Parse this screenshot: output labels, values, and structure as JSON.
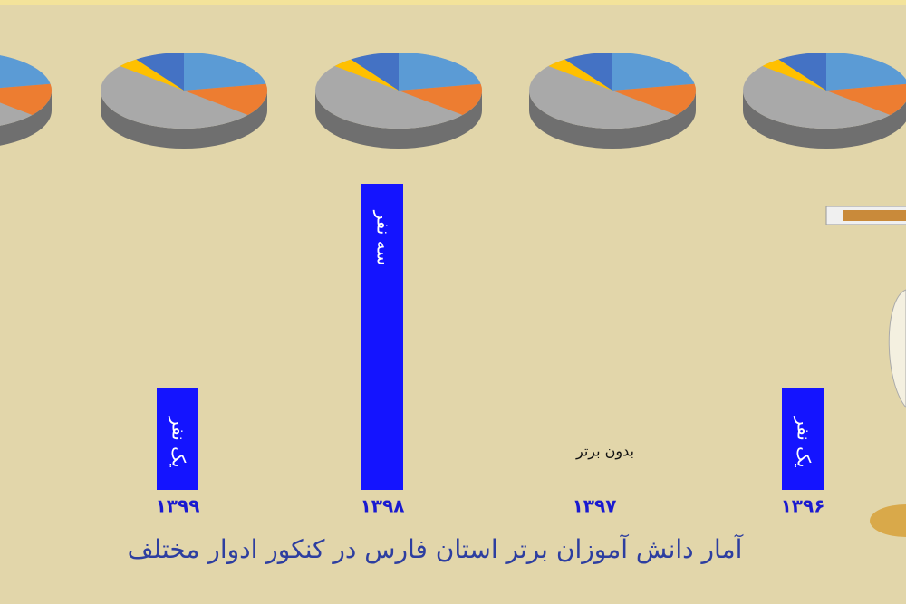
{
  "chart_data": {
    "type": "bar",
    "title": "آمار دانش آموزان برتر استان فارس در کنکور ادوار مختلف",
    "categories": [
      "۱۳۹۹",
      "۱۳۹۸",
      "۱۳۹۷",
      "۱۳۹۶"
    ],
    "values": [
      1,
      3,
      0,
      1
    ],
    "value_labels": [
      "یک نفر",
      "سه نفر",
      "بدون برتر",
      "یک نفر"
    ],
    "color": "#1414ff"
  }
}
